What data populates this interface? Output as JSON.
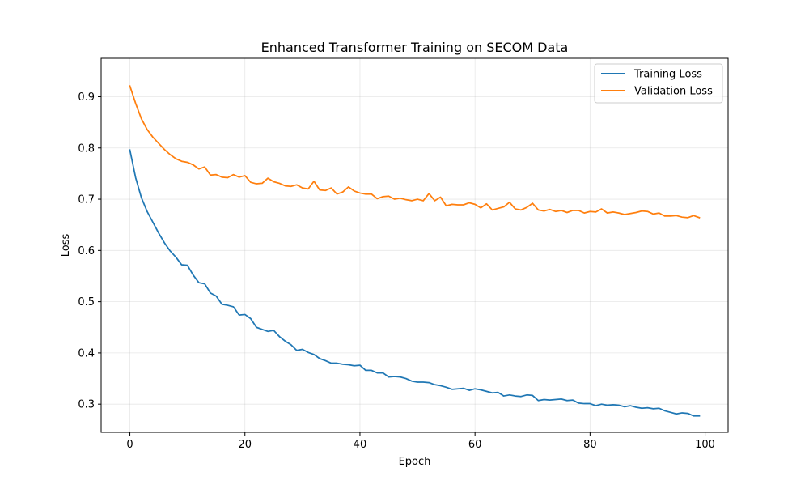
{
  "chart_data": {
    "type": "line",
    "title": "Enhanced Transformer Training on SECOM Data",
    "xlabel": "Epoch",
    "ylabel": "Loss",
    "xlim": [
      -5,
      104
    ],
    "ylim": [
      0.245,
      0.975
    ],
    "xticks": [
      0,
      20,
      40,
      60,
      80,
      100
    ],
    "xtick_labels": [
      "0",
      "20",
      "40",
      "60",
      "80",
      "100"
    ],
    "yticks": [
      0.3,
      0.4,
      0.5,
      0.6,
      0.7,
      0.8,
      0.9
    ],
    "ytick_labels": [
      "0.3",
      "0.4",
      "0.5",
      "0.6",
      "0.7",
      "0.8",
      "0.9"
    ],
    "grid": true,
    "legend_position": "top-right",
    "series": [
      {
        "name": "Training Loss",
        "color": "#1f77b4",
        "x": [
          0,
          1,
          2,
          3,
          4,
          5,
          6,
          7,
          8,
          9,
          10,
          11,
          12,
          13,
          14,
          15,
          16,
          17,
          18,
          19,
          20,
          21,
          22,
          23,
          24,
          25,
          26,
          27,
          28,
          29,
          30,
          31,
          32,
          33,
          34,
          35,
          36,
          37,
          38,
          39,
          40,
          41,
          42,
          43,
          44,
          45,
          46,
          47,
          48,
          49,
          50,
          51,
          52,
          53,
          54,
          55,
          56,
          57,
          58,
          59,
          60,
          61,
          62,
          63,
          64,
          65,
          66,
          67,
          68,
          69,
          70,
          71,
          72,
          73,
          74,
          75,
          76,
          77,
          78,
          79,
          80,
          81,
          82,
          83,
          84,
          85,
          86,
          87,
          88,
          89,
          90,
          91,
          92,
          93,
          94,
          95,
          96,
          97,
          98,
          99
        ],
        "y": [
          0.796,
          0.742,
          0.703,
          0.676,
          0.655,
          0.634,
          0.615,
          0.599,
          0.587,
          0.572,
          0.571,
          0.552,
          0.537,
          0.535,
          0.517,
          0.511,
          0.495,
          0.493,
          0.49,
          0.474,
          0.475,
          0.467,
          0.45,
          0.446,
          0.442,
          0.444,
          0.432,
          0.423,
          0.416,
          0.405,
          0.407,
          0.401,
          0.397,
          0.389,
          0.385,
          0.38,
          0.38,
          0.378,
          0.377,
          0.375,
          0.376,
          0.366,
          0.366,
          0.361,
          0.361,
          0.353,
          0.354,
          0.353,
          0.35,
          0.345,
          0.343,
          0.343,
          0.342,
          0.338,
          0.336,
          0.333,
          0.329,
          0.33,
          0.331,
          0.327,
          0.33,
          0.328,
          0.325,
          0.322,
          0.323,
          0.316,
          0.318,
          0.316,
          0.315,
          0.318,
          0.317,
          0.307,
          0.309,
          0.308,
          0.309,
          0.31,
          0.307,
          0.308,
          0.302,
          0.301,
          0.301,
          0.297,
          0.3,
          0.298,
          0.299,
          0.298,
          0.295,
          0.297,
          0.294,
          0.292,
          0.293,
          0.291,
          0.292,
          0.287,
          0.284,
          0.281,
          0.283,
          0.282,
          0.277,
          0.277
        ]
      },
      {
        "name": "Validation Loss",
        "color": "#ff7f0e",
        "x": [
          0,
          1,
          2,
          3,
          4,
          5,
          6,
          7,
          8,
          9,
          10,
          11,
          12,
          13,
          14,
          15,
          16,
          17,
          18,
          19,
          20,
          21,
          22,
          23,
          24,
          25,
          26,
          27,
          28,
          29,
          30,
          31,
          32,
          33,
          34,
          35,
          36,
          37,
          38,
          39,
          40,
          41,
          42,
          43,
          44,
          45,
          46,
          47,
          48,
          49,
          50,
          51,
          52,
          53,
          54,
          55,
          56,
          57,
          58,
          59,
          60,
          61,
          62,
          63,
          64,
          65,
          66,
          67,
          68,
          69,
          70,
          71,
          72,
          73,
          74,
          75,
          76,
          77,
          78,
          79,
          80,
          81,
          82,
          83,
          84,
          85,
          86,
          87,
          88,
          89,
          90,
          91,
          92,
          93,
          94,
          95,
          96,
          97,
          98,
          99
        ],
        "y": [
          0.921,
          0.887,
          0.857,
          0.836,
          0.821,
          0.809,
          0.797,
          0.787,
          0.779,
          0.774,
          0.772,
          0.767,
          0.759,
          0.763,
          0.747,
          0.748,
          0.743,
          0.742,
          0.748,
          0.743,
          0.746,
          0.733,
          0.73,
          0.731,
          0.741,
          0.734,
          0.731,
          0.726,
          0.725,
          0.728,
          0.722,
          0.72,
          0.735,
          0.718,
          0.717,
          0.722,
          0.71,
          0.714,
          0.724,
          0.716,
          0.712,
          0.71,
          0.71,
          0.701,
          0.705,
          0.706,
          0.7,
          0.702,
          0.699,
          0.697,
          0.7,
          0.697,
          0.711,
          0.697,
          0.704,
          0.687,
          0.69,
          0.689,
          0.689,
          0.693,
          0.69,
          0.683,
          0.691,
          0.679,
          0.682,
          0.685,
          0.694,
          0.681,
          0.679,
          0.684,
          0.692,
          0.679,
          0.677,
          0.68,
          0.676,
          0.678,
          0.674,
          0.678,
          0.678,
          0.673,
          0.676,
          0.675,
          0.681,
          0.673,
          0.675,
          0.673,
          0.67,
          0.672,
          0.674,
          0.677,
          0.676,
          0.671,
          0.673,
          0.667,
          0.667,
          0.668,
          0.665,
          0.664,
          0.668,
          0.664
        ]
      }
    ]
  }
}
